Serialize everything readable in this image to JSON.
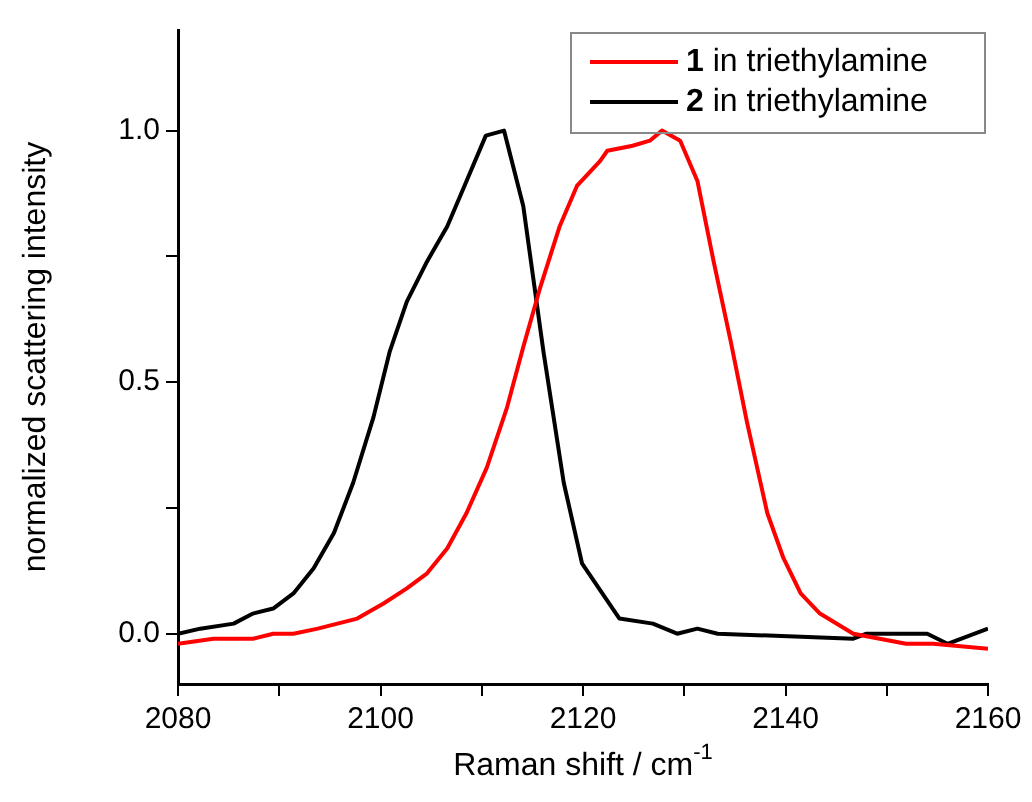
{
  "chart_data": {
    "type": "line",
    "xlabel": "Raman shift / cm$^{-1}$",
    "ylabel": "normalized scattering intensity",
    "xlim": [
      2080,
      2160
    ],
    "xticks": [
      2080,
      {
        "value": 2090,
        "label": null
      },
      2100,
      {
        "value": 2110,
        "label": null
      },
      2120,
      {
        "value": 2130,
        "label": null
      },
      2140,
      {
        "value": 2150,
        "label": null
      },
      2160
    ],
    "ylim": [
      -0.1,
      1.2
    ],
    "yticks": [
      {
        "value": 0,
        "label": "0.0"
      },
      {
        "value": 0.25,
        "label": null
      },
      {
        "value": 0.5,
        "label": "0.5"
      },
      {
        "value": 0.75,
        "label": null
      },
      {
        "value": 1,
        "label": "1.0"
      }
    ],
    "grid": false,
    "legend": "top right",
    "marker": "none",
    "line_style": "solid",
    "series": [
      {
        "name": "1 in triethylamine",
        "color": "#ff0000",
        "x": [
          2080,
          2083.5,
          2087.4,
          2089.4,
          2091.4,
          2093.8,
          2097.7,
          2100.3,
          2102.6,
          2104.6,
          2106.6,
          2108.5,
          2110.5,
          2112.5,
          2114.1,
          2115.8,
          2117.7,
          2119.4,
          2121.7,
          2122.4,
          2124.9,
          2126.6,
          2127.8,
          2129.6,
          2131.3,
          2132.9,
          2134.6,
          2136.2,
          2138.2,
          2139.8,
          2141.5,
          2143.4,
          2146.7,
          2149.3,
          2151.9,
          2154.6,
          2160
        ],
        "values": [
          -0.02,
          -0.01,
          -0.01,
          0,
          0,
          0.01,
          0.03,
          0.06,
          0.09,
          0.12,
          0.17,
          0.24,
          0.33,
          0.45,
          0.57,
          0.69,
          0.81,
          0.89,
          0.94,
          0.96,
          0.97,
          0.98,
          1.0,
          0.98,
          0.9,
          0.74,
          0.58,
          0.42,
          0.24,
          0.15,
          0.08,
          0.04,
          0,
          -0.01,
          -0.02,
          -0.02,
          -0.03
        ]
      },
      {
        "name": "2 in triethylamine",
        "color": "#000000",
        "x": [
          2080,
          2082.2,
          2085.5,
          2087.4,
          2089.4,
          2091.4,
          2093.4,
          2095.4,
          2097.3,
          2099.3,
          2100.9,
          2102.6,
          2104.6,
          2106.6,
          2108.5,
          2110.4,
          2112.2,
          2114.1,
          2116.1,
          2118.1,
          2119.9,
          2123.6,
          2126.9,
          2129.3,
          2131.3,
          2133.3,
          2146.7,
          2148,
          2152,
          2154,
          2156,
          2160
        ],
        "values": [
          0,
          0.01,
          0.02,
          0.04,
          0.05,
          0.08,
          0.13,
          0.2,
          0.3,
          0.43,
          0.56,
          0.66,
          0.74,
          0.81,
          0.9,
          0.99,
          1.0,
          0.85,
          0.56,
          0.3,
          0.14,
          0.03,
          0.02,
          0,
          0.01,
          0,
          -0.01,
          0,
          0,
          0,
          -0.02,
          0.01
        ]
      }
    ]
  }
}
